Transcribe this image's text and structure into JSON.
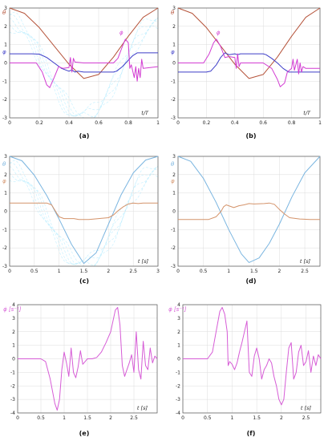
{
  "colors": {
    "theta_top": "#b5533a",
    "phi_top": "#3d3dc8",
    "phidot_top": "#d23cd2",
    "theta_mid": "#7ab5e0",
    "phi_mid": "#d4936a",
    "phidot_bottom": "#d65cd6",
    "noise": "#78dcff"
  },
  "chart_data": [
    {
      "id": "a",
      "type": "line",
      "caption": "(a)",
      "xlabel": "t/T",
      "xlim": [
        0,
        1
      ],
      "ylim": [
        -3,
        3
      ],
      "xticks": [
        "0",
        "0.2",
        "0.4",
        "0.6",
        "0.8",
        "1"
      ],
      "yticks": [
        "3",
        "2",
        "1",
        "0",
        "-1",
        "-2",
        "-3"
      ],
      "series": [
        {
          "name": "θ",
          "x": [
            0,
            0.1,
            0.2,
            0.3,
            0.4,
            0.5,
            0.6,
            0.7,
            0.8,
            0.9,
            1
          ],
          "y": [
            3,
            2.71,
            1.93,
            0.93,
            -0.07,
            -0.85,
            -0.63,
            0.32,
            1.46,
            2.49,
            3
          ]
        },
        {
          "name": "φ",
          "x": [
            0,
            0.15,
            0.2,
            0.25,
            0.3,
            0.35,
            0.4,
            0.42,
            0.44,
            0.46,
            0.5,
            0.6,
            0.7,
            0.72,
            0.76,
            0.8,
            0.83,
            0.86,
            0.9,
            1
          ],
          "y": [
            0.5,
            0.5,
            0.48,
            0.3,
            0,
            -0.3,
            -0.45,
            -0.38,
            -0.5,
            -0.45,
            -0.5,
            -0.5,
            -0.5,
            -0.45,
            -0.2,
            0.15,
            0.4,
            0.55,
            0.55,
            0.55
          ]
        },
        {
          "name": "φ̇",
          "x": [
            0,
            0.18,
            0.22,
            0.25,
            0.27,
            0.3,
            0.33,
            0.36,
            0.4,
            0.41,
            0.42,
            0.43,
            0.44,
            0.5,
            0.6,
            0.7,
            0.73,
            0.76,
            0.78,
            0.8,
            0.81,
            0.82,
            0.84,
            0.85,
            0.86,
            0.87,
            0.88,
            0.89,
            0.9,
            1
          ],
          "y": [
            0,
            0,
            -0.5,
            -1.2,
            -1.35,
            -0.8,
            -0.2,
            -0.3,
            -0.25,
            0.3,
            -0.5,
            0.25,
            0.05,
            0,
            0,
            0,
            0.25,
            0.9,
            1.3,
            1.1,
            -0.3,
            -0.1,
            -0.8,
            -0.2,
            -1.0,
            -0.3,
            -0.8,
            0.2,
            -0.3,
            -0.2
          ]
        }
      ]
    },
    {
      "id": "b",
      "type": "line",
      "caption": "(b)",
      "xlabel": "t/T",
      "xlim": [
        0,
        1
      ],
      "ylim": [
        -3,
        3
      ],
      "xticks": [
        "0",
        "0.2",
        "0.4",
        "0.6",
        "0.8",
        "1"
      ],
      "yticks": [
        "3",
        "2",
        "1",
        "0",
        "-1",
        "-2",
        "-3"
      ],
      "series": [
        {
          "name": "θ",
          "x": [
            0,
            0.1,
            0.2,
            0.3,
            0.4,
            0.5,
            0.6,
            0.7,
            0.8,
            0.9,
            1
          ],
          "y": [
            3,
            2.71,
            1.93,
            0.93,
            -0.07,
            -0.85,
            -0.63,
            0.32,
            1.46,
            2.49,
            3
          ]
        },
        {
          "name": "φ",
          "x": [
            0,
            0.2,
            0.23,
            0.27,
            0.3,
            0.33,
            0.36,
            0.4,
            0.42,
            0.44,
            0.5,
            0.6,
            0.62,
            0.66,
            0.7,
            0.74,
            0.78,
            0.82,
            0.86,
            1
          ],
          "y": [
            -0.5,
            -0.5,
            -0.45,
            -0.1,
            0.3,
            0.55,
            0.45,
            0.5,
            0.45,
            0.5,
            0.5,
            0.5,
            0.45,
            0.25,
            0,
            -0.3,
            -0.5,
            -0.5,
            -0.5,
            -0.5
          ]
        },
        {
          "name": "φ̇",
          "x": [
            0,
            0.18,
            0.22,
            0.25,
            0.27,
            0.3,
            0.33,
            0.36,
            0.4,
            0.41,
            0.42,
            0.43,
            0.44,
            0.5,
            0.6,
            0.66,
            0.7,
            0.72,
            0.75,
            0.77,
            0.8,
            0.81,
            0.82,
            0.84,
            0.85,
            0.86,
            0.87,
            0.88,
            0.9,
            1
          ],
          "y": [
            0,
            0,
            0.5,
            1.1,
            1.3,
            0.9,
            0.3,
            0.35,
            0.3,
            -0.3,
            0.5,
            -0.2,
            0,
            0,
            0,
            -0.3,
            -0.9,
            -1.3,
            -1.1,
            -0.5,
            -0.3,
            0.2,
            -0.4,
            0.2,
            -0.6,
            0,
            -0.5,
            -0.2,
            -0.3,
            -0.3
          ]
        }
      ]
    },
    {
      "id": "c",
      "type": "line",
      "caption": "(c)",
      "xlabel": "t [s]",
      "xlim": [
        0,
        3
      ],
      "ylim": [
        -3,
        3
      ],
      "xticks": [
        "0",
        "0.5",
        "1",
        "1.5",
        "2",
        "2.5",
        "3"
      ],
      "yticks": [
        "3",
        "2",
        "1",
        "0",
        "-1",
        "-2",
        "-3"
      ],
      "series": [
        {
          "name": "θ",
          "x": [
            0,
            0.25,
            0.5,
            0.75,
            1,
            1.25,
            1.5,
            1.75,
            2,
            2.25,
            2.5,
            2.75,
            3
          ],
          "y": [
            3,
            2.76,
            1.97,
            0.86,
            -0.43,
            -1.8,
            -2.85,
            -2.27,
            -0.7,
            0.88,
            2.1,
            2.8,
            3
          ]
        },
        {
          "name": "φ",
          "x": [
            0,
            0.5,
            0.75,
            0.85,
            0.95,
            1.0,
            1.05,
            1.1,
            1.3,
            1.4,
            1.6,
            1.8,
            2.0,
            2.1,
            2.2,
            2.3,
            2.4,
            2.5,
            2.6,
            2.7,
            2.8,
            3
          ],
          "y": [
            0.45,
            0.45,
            0.45,
            0.35,
            -0.1,
            -0.3,
            -0.35,
            -0.4,
            -0.4,
            -0.45,
            -0.45,
            -0.4,
            -0.35,
            -0.2,
            0.05,
            0.25,
            0.4,
            0.45,
            0.42,
            0.45,
            0.45,
            0.45
          ]
        }
      ]
    },
    {
      "id": "d",
      "type": "line",
      "caption": "(d)",
      "xlabel": "t [s]",
      "xlim": [
        0,
        2.8
      ],
      "ylim": [
        -3,
        3
      ],
      "xticks": [
        "0",
        "0.5",
        "1",
        "1.5",
        "2",
        "2.5"
      ],
      "yticks": [
        "3",
        "2",
        "1",
        "0",
        "-1",
        "-2",
        "-3"
      ],
      "series": [
        {
          "name": "θ",
          "x": [
            0,
            0.25,
            0.5,
            0.75,
            1,
            1.25,
            1.4,
            1.6,
            1.8,
            2,
            2.25,
            2.5,
            2.8
          ],
          "y": [
            3,
            2.73,
            1.8,
            0.49,
            -1.0,
            -2.33,
            -2.8,
            -2.55,
            -1.75,
            -0.7,
            0.8,
            2.1,
            3
          ]
        },
        {
          "name": "φ",
          "x": [
            0,
            0.6,
            0.75,
            0.85,
            0.9,
            0.95,
            1.0,
            1.1,
            1.2,
            1.3,
            1.4,
            1.5,
            1.7,
            1.8,
            1.9,
            2.0,
            2.1,
            2.2,
            2.4,
            2.6,
            2.8
          ],
          "y": [
            -0.45,
            -0.45,
            -0.3,
            0,
            0.25,
            0.35,
            0.3,
            0.2,
            0.3,
            0.35,
            0.42,
            0.4,
            0.42,
            0.45,
            0.38,
            0.1,
            -0.15,
            -0.35,
            -0.42,
            -0.45,
            -0.45
          ]
        }
      ]
    },
    {
      "id": "e",
      "type": "line",
      "caption": "(e)",
      "xlabel": "t [s]",
      "ylabel": "φ̇ [s⁻¹]",
      "xlim": [
        0,
        3
      ],
      "ylim": [
        -4,
        4
      ],
      "xticks": [
        "0",
        "0.5",
        "1",
        "1.5",
        "2",
        "2.5"
      ],
      "yticks": [
        "4",
        "3",
        "2",
        "1",
        "0",
        "-1",
        "-2",
        "-3",
        "-4"
      ],
      "series": [
        {
          "name": "φ̇",
          "x": [
            0,
            0.5,
            0.6,
            0.7,
            0.8,
            0.85,
            0.9,
            0.95,
            1.0,
            1.05,
            1.1,
            1.15,
            1.2,
            1.25,
            1.3,
            1.35,
            1.4,
            1.45,
            1.5,
            1.6,
            1.7,
            1.8,
            1.9,
            2.0,
            2.1,
            2.15,
            2.2,
            2.25,
            2.3,
            2.4,
            2.45,
            2.5,
            2.55,
            2.6,
            2.65,
            2.7,
            2.75,
            2.8,
            2.85,
            2.9,
            2.95,
            3.0
          ],
          "y": [
            0,
            0,
            -0.2,
            -1.5,
            -3.3,
            -3.8,
            -3.0,
            -0.8,
            0.5,
            -0.3,
            -1.3,
            0.8,
            -1.0,
            -1.4,
            -0.6,
            0.6,
            -0.4,
            -0.2,
            0,
            0,
            0.1,
            0.5,
            1.2,
            2.0,
            3.6,
            3.8,
            2.5,
            -0.5,
            -1.3,
            -0.3,
            0.3,
            -1.0,
            2.0,
            -0.8,
            -1.5,
            1.3,
            -0.5,
            -0.8,
            0.8,
            -0.3,
            0.2,
            0
          ]
        }
      ]
    },
    {
      "id": "f",
      "type": "line",
      "caption": "(f)",
      "xlabel": "t [s]",
      "ylabel": "φ̇ [s⁻¹]",
      "xlim": [
        0,
        2.8
      ],
      "ylim": [
        -4,
        4
      ],
      "xticks": [
        "0",
        "0.5",
        "1",
        "1.5",
        "2",
        "2.5"
      ],
      "yticks": [
        "4",
        "3",
        "2",
        "1",
        "0",
        "-1",
        "-2",
        "-3",
        "-4"
      ],
      "series": [
        {
          "name": "φ̇",
          "x": [
            0,
            0.5,
            0.6,
            0.65,
            0.7,
            0.75,
            0.8,
            0.85,
            0.9,
            0.92,
            0.95,
            1.0,
            1.05,
            1.1,
            1.15,
            1.2,
            1.25,
            1.3,
            1.35,
            1.4,
            1.45,
            1.5,
            1.55,
            1.6,
            1.65,
            1.7,
            1.75,
            1.8,
            1.85,
            1.9,
            1.95,
            2.0,
            2.05,
            2.1,
            2.15,
            2.2,
            2.25,
            2.3,
            2.35,
            2.4,
            2.45,
            2.5,
            2.55,
            2.6,
            2.65,
            2.7,
            2.75,
            2.8
          ],
          "y": [
            0,
            0,
            0.5,
            1.5,
            2.5,
            3.5,
            3.8,
            3.3,
            2.0,
            -0.5,
            -0.2,
            -0.4,
            -0.8,
            -0.3,
            0.5,
            1.2,
            2.0,
            2.8,
            -1.0,
            -1.3,
            0.2,
            0.8,
            0,
            -1.5,
            -0.8,
            -0.5,
            0,
            -0.3,
            -1.3,
            -2.0,
            -3.0,
            -3.4,
            -3.0,
            -1.0,
            0.8,
            1.2,
            -1.5,
            -1.0,
            0.5,
            1.0,
            -0.5,
            -0.2,
            0.6,
            -1.0,
            0.2,
            -0.5,
            0.3,
            0
          ]
        }
      ]
    }
  ]
}
